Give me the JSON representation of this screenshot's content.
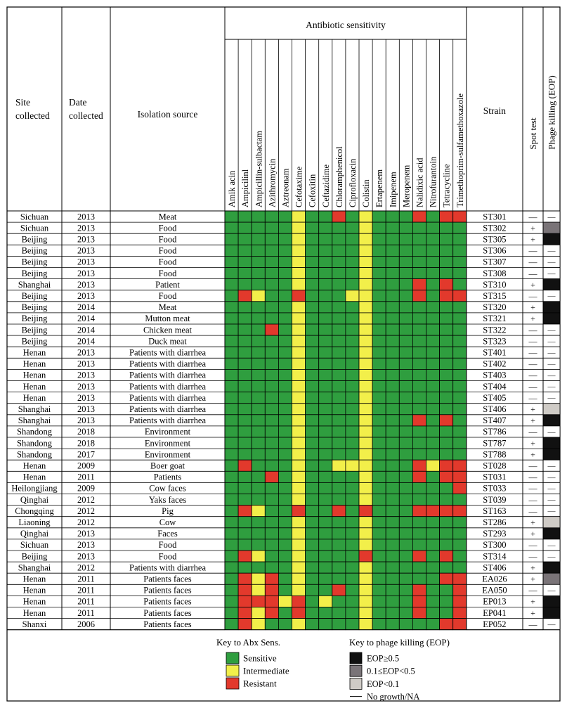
{
  "header": {
    "site": [
      "Site",
      "collected"
    ],
    "date": [
      "Date",
      "collected"
    ],
    "source": "Isolation source",
    "antibiotic_group": "Antibiotic sensitivity",
    "strain": "Strain",
    "spot": "Spot test",
    "phage": "Phage killing (EOP)"
  },
  "antibiotics": [
    "Amik acin",
    "Ampicilinl",
    "Ampicillin-sulbactam",
    "Azithromycin",
    "Aztreonam",
    "Cefotaxime",
    "Cefoxitin",
    "Ceftazidime",
    "Chloramphenicol",
    "Ciprofloxacin",
    "Colistin",
    "Ertapenem",
    "Imipenem",
    "Meropenem",
    "Nalidixic acid",
    "Nitrofurantoin",
    "Tetracycline",
    "Trimethoprim-sulfamethoxazole"
  ],
  "colors": {
    "S": "#2f9e3f",
    "I": "#f2ef4a",
    "R": "#e2392c",
    "E1": "#111111",
    "E2": "#7a7478",
    "E3": "#cfcbc6",
    "NA": "#ffffff"
  },
  "rows": [
    {
      "site": "Sichuan",
      "date": "2013",
      "source": "Meat",
      "abx": "SSSSSISSRSISSSRSRR",
      "strain": "ST301",
      "spot": "—",
      "eop": "NA"
    },
    {
      "site": "Sichuan",
      "date": "2013",
      "source": "Food",
      "abx": "SSSSSISSSSISSSSSSS",
      "strain": "ST302",
      "spot": "+",
      "eop": "E2"
    },
    {
      "site": "Beijing",
      "date": "2013",
      "source": "Food",
      "abx": "SSSSSISSSSISSSSSSS",
      "strain": "ST305",
      "spot": "+",
      "eop": "E1"
    },
    {
      "site": "Beijing",
      "date": "2013",
      "source": "Food",
      "abx": "SSSSSISSSSISSSSSSS",
      "strain": "ST306",
      "spot": "—",
      "eop": "NA"
    },
    {
      "site": "Beijing",
      "date": "2013",
      "source": "Food",
      "abx": "SSSSSISSSSISSSSSSS",
      "strain": "ST307",
      "spot": "—",
      "eop": "NA"
    },
    {
      "site": "Beijing",
      "date": "2013",
      "source": "Food",
      "abx": "SSSSSISSSSISSSSSSS",
      "strain": "ST308",
      "spot": "—",
      "eop": "NA"
    },
    {
      "site": "Shanghai",
      "date": "2013",
      "source": "Patient",
      "abx": "SSSSSISSSSISSSRSRS",
      "strain": "ST310",
      "spot": "+",
      "eop": "E1"
    },
    {
      "site": "Beijing",
      "date": "2013",
      "source": "Food",
      "abx": "SRISSRSSSIISSSRSRR",
      "strain": "ST315",
      "spot": "—",
      "eop": "NA"
    },
    {
      "site": "Beijing",
      "date": "2014",
      "source": "Meat",
      "abx": "SSSSSISSSSISSSSSSS",
      "strain": "ST320",
      "spot": "+",
      "eop": "E1"
    },
    {
      "site": "Beijing",
      "date": "2014",
      "source": "Mutton meat",
      "abx": "SSSSSISSSSISSSSSSS",
      "strain": "ST321",
      "spot": "+",
      "eop": "E1"
    },
    {
      "site": "Beijing",
      "date": "2014",
      "source": "Chicken meat",
      "abx": "SSSRSISSSSISSSSSSS",
      "strain": "ST322",
      "spot": "—",
      "eop": "NA"
    },
    {
      "site": "Beijing",
      "date": "2014",
      "source": "Duck meat",
      "abx": "SSSSSISSSSISSSSSSS",
      "strain": "ST323",
      "spot": "—",
      "eop": "NA"
    },
    {
      "site": "Henan",
      "date": "2013",
      "source": "Patients with diarrhea",
      "abx": "SSSSSISSSSISSSSSSS",
      "strain": "ST401",
      "spot": "—",
      "eop": "NA"
    },
    {
      "site": "Henan",
      "date": "2013",
      "source": "Patients with diarrhea",
      "abx": "SSSSSISSSSISSSSSSS",
      "strain": "ST402",
      "spot": "—",
      "eop": "NA"
    },
    {
      "site": "Henan",
      "date": "2013",
      "source": "Patients with diarrhea",
      "abx": "SSSSSISSSSISSSSSSS",
      "strain": "ST403",
      "spot": "—",
      "eop": "NA"
    },
    {
      "site": "Henan",
      "date": "2013",
      "source": "Patients with diarrhea",
      "abx": "SSSSSISSSSISSSSSSS",
      "strain": "ST404",
      "spot": "—",
      "eop": "NA"
    },
    {
      "site": "Henan",
      "date": "2013",
      "source": "Patients with diarrhea",
      "abx": "SSSSSISSSSISSSSSSS",
      "strain": "ST405",
      "spot": "—",
      "eop": "NA"
    },
    {
      "site": "Shanghai",
      "date": "2013",
      "source": "Patients with diarrhea",
      "abx": "SSSSSISSSSISSSSSSS",
      "strain": "ST406",
      "spot": "+",
      "eop": "E3"
    },
    {
      "site": "Shanghai",
      "date": "2013",
      "source": "Patients with diarrhea",
      "abx": "SSSSSISSSSISSSRSRS",
      "strain": "ST407",
      "spot": "+",
      "eop": "E1"
    },
    {
      "site": "Shandong",
      "date": "2018",
      "source": "Environment",
      "abx": "SSSSSISSSSISSSSSSS",
      "strain": "ST786",
      "spot": "—",
      "eop": "NA"
    },
    {
      "site": "Shandong",
      "date": "2018",
      "source": "Environment",
      "abx": "SSSSSISSSSISSSSSSS",
      "strain": "ST787",
      "spot": "+",
      "eop": "E1"
    },
    {
      "site": "Shandong",
      "date": "2017",
      "source": "Environment",
      "abx": "SSSSSISSSSISSSSSSS",
      "strain": "ST788",
      "spot": "+",
      "eop": "E1"
    },
    {
      "site": "Henan",
      "date": "2009",
      "source": "Boer goat",
      "abx": "SRSSSISSIIISSSRIRR",
      "strain": "ST028",
      "spot": "—",
      "eop": "NA"
    },
    {
      "site": "Henan",
      "date": "2011",
      "source": "Patients",
      "abx": "SSSRSISSSSISSSRSRR",
      "strain": "ST031",
      "spot": "—",
      "eop": "NA"
    },
    {
      "site": "Heilongjiang",
      "date": "2009",
      "source": "Cow faces",
      "abx": "SSSSSISSSSISSSSSSR",
      "strain": "ST033",
      "spot": "—",
      "eop": "NA"
    },
    {
      "site": "Qinghai",
      "date": "2012",
      "source": "Yaks faces",
      "abx": "SSSSSISSSSISSSSSSS",
      "strain": "ST039",
      "spot": "—",
      "eop": "NA"
    },
    {
      "site": "Chongqing",
      "date": "2012",
      "source": "Pig",
      "abx": "SRISSRSSRSRSSSRRRR",
      "strain": "ST163",
      "spot": "—",
      "eop": "NA"
    },
    {
      "site": "Liaoning",
      "date": "2012",
      "source": "Cow",
      "abx": "SSSSSISSSSISSSSSSS",
      "strain": "ST286",
      "spot": "+",
      "eop": "E3"
    },
    {
      "site": "Qinghai",
      "date": "2013",
      "source": "Faces",
      "abx": "SSSSSISSSSISSSSSSS",
      "strain": "ST293",
      "spot": "+",
      "eop": "E1"
    },
    {
      "site": "Sichuan",
      "date": "2013",
      "source": "Food",
      "abx": "SSSSSISSSSISSSSSSS",
      "strain": "ST300",
      "spot": "—",
      "eop": "NA"
    },
    {
      "site": "Beijing",
      "date": "2013",
      "source": "Food",
      "abx": "SRISSISSSSRSSSRSRS",
      "strain": "ST314",
      "spot": "—",
      "eop": "NA"
    },
    {
      "site": "Shanghai",
      "date": "2012",
      "source": "Patients with diarrhea",
      "abx": "SSSSSISSSSISSSSSSS",
      "strain": "ST406",
      "spot": "+",
      "eop": "E1"
    },
    {
      "site": "Henan",
      "date": "2011",
      "source": "Patients faces",
      "abx": "SRIRSISSSSISSSSSRR",
      "strain": "EA026",
      "spot": "+",
      "eop": "E2"
    },
    {
      "site": "Henan",
      "date": "2011",
      "source": "Patients faces",
      "abx": "SRIRSISSRSISSSRSSR",
      "strain": "EA050",
      "spot": "—",
      "eop": "NA"
    },
    {
      "site": "Henan",
      "date": "2011",
      "source": "Patients faces",
      "abx": "SRRRIRSISSISSSRSSR",
      "strain": "EP013",
      "spot": "+",
      "eop": "E1"
    },
    {
      "site": "Henan",
      "date": "2011",
      "source": "Patients faces",
      "abx": "SRIRSRSSSSISSSRSSR",
      "strain": "EP041",
      "spot": "+",
      "eop": "E1"
    },
    {
      "site": "Shanxi",
      "date": "2006",
      "source": "Patients faces",
      "abx": "SRISSISSSSISSSSSRR",
      "strain": "EP052",
      "spot": "—",
      "eop": "NA"
    }
  ],
  "legend_abx": {
    "title": "Key to Abx Sens.",
    "items": [
      {
        "key": "S",
        "label": "Sensitive"
      },
      {
        "key": "I",
        "label": "Intermediate"
      },
      {
        "key": "R",
        "label": "Resistant"
      }
    ]
  },
  "legend_eop": {
    "title": "Key to phage killing (EOP)",
    "items": [
      {
        "key": "E1",
        "label": "EOP≥0.5"
      },
      {
        "key": "E2",
        "label": "0.1≤EOP<0.5"
      },
      {
        "key": "E3",
        "label": "EOP<0.1"
      },
      {
        "key": "NA",
        "label": "No growth/NA"
      }
    ]
  }
}
